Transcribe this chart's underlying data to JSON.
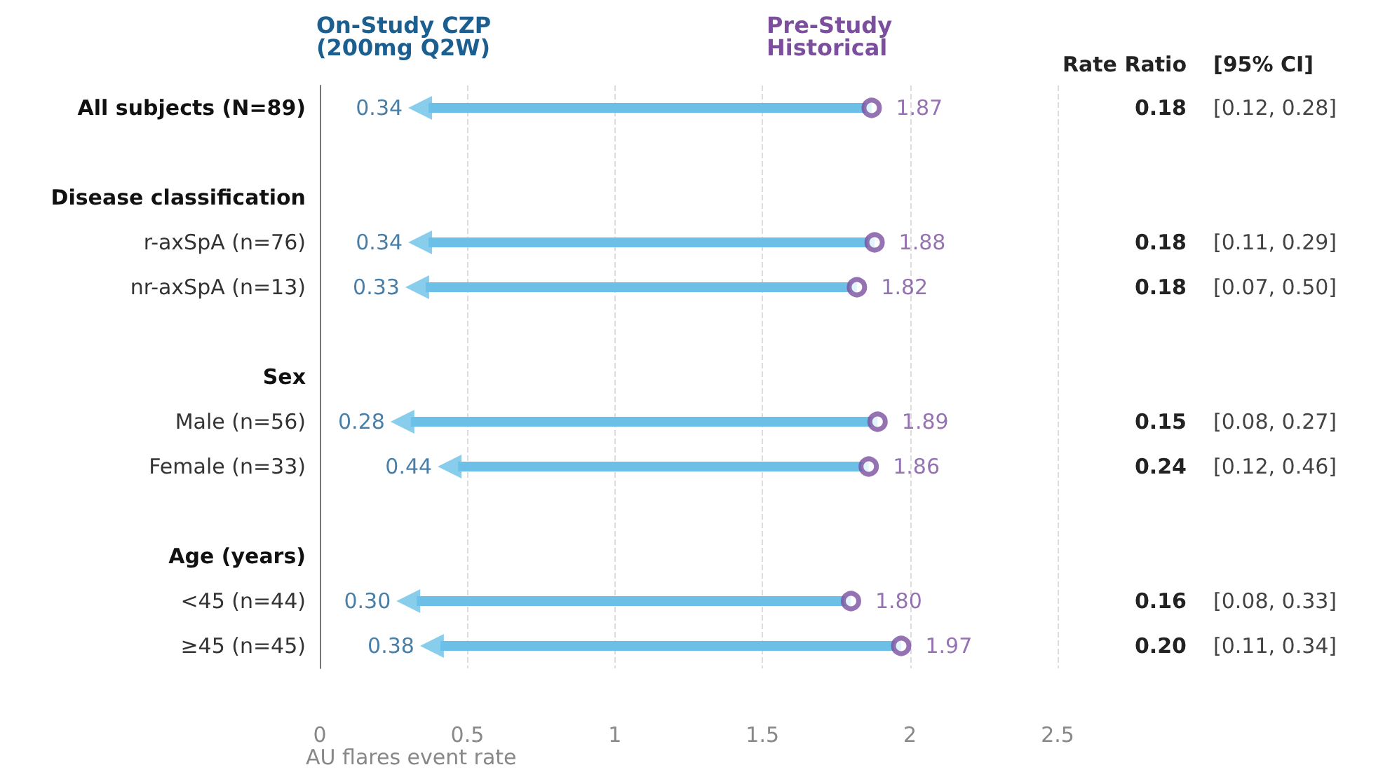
{
  "chart_data": [
    {
      "type": "scatter",
      "orientation": "horizontal",
      "xlabel": "AU flares event rate",
      "categories": [
        "All subjects (N=89)",
        null,
        "Disease classification",
        "r-axSpA (n=76)",
        "nr-axSpA (n=13)",
        null,
        "Sex",
        "Male (n=56)",
        "Female (n=33)",
        null,
        "Age (years)",
        "<45 (n=44)",
        "≥45 (n=45)"
      ],
      "series": [
        {
          "name": "On-Study CZP (200mg Q2W)",
          "type": "scatter",
          "marker": "triangle",
          "color": "#6cc0e8",
          "values": [
            0.34,
            null,
            null,
            0.34,
            0.33,
            null,
            null,
            0.28,
            0.44,
            null,
            null,
            0.3,
            0.38
          ],
          "value_labels": [
            "0.34",
            null,
            null,
            "0.34",
            "0.33",
            null,
            null,
            "0.28",
            "0.44",
            null,
            null,
            "0.30",
            "0.38"
          ]
        },
        {
          "name": "Pre-Study Historical",
          "type": "scatter",
          "marker": "circle",
          "color": "#7b4f9d",
          "values": [
            1.87,
            null,
            null,
            1.88,
            1.82,
            null,
            null,
            1.89,
            1.86,
            null,
            null,
            1.8,
            1.97
          ],
          "value_labels": [
            "1.87",
            null,
            null,
            "1.88",
            "1.82",
            null,
            null,
            "1.89",
            "1.86",
            null,
            null,
            "1.80",
            "1.97"
          ]
        }
      ],
      "xlim": [
        0,
        2.5
      ],
      "xticks": [
        0,
        0.5,
        1,
        1.5,
        2,
        2.5
      ],
      "grid": "x",
      "legend": false
    },
    {
      "type": "other",
      "annotations": [
        "Rate Ratio",
        "[95% CI]",
        "0.18",
        "[0.12, 0.28]",
        "0.18",
        "[0.11, 0.29]",
        "0.18",
        "[0.07, 0.50]",
        "0.15",
        "[0.08, 0.27]",
        "0.24",
        "[0.12, 0.46]",
        "0.16",
        "[0.08, 0.33]",
        "0.20",
        "[0.11, 0.34]"
      ]
    }
  ]
}
